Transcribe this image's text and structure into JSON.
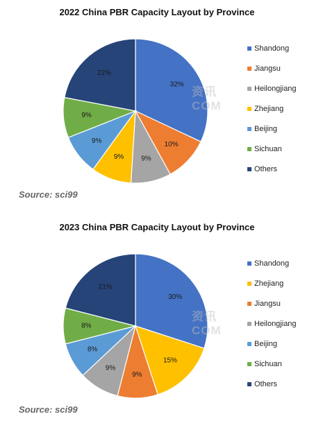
{
  "colors": {
    "Shandong": "#4472c4",
    "Jiangsu": "#ed7d31",
    "Heilongjiang": "#a5a5a5",
    "Zhejiang": "#ffc000",
    "Beijing": "#5b9bd5",
    "Sichuan": "#70ad47",
    "Others": "#264478"
  },
  "watermark": "资讯\nCOM",
  "chart_data": [
    {
      "type": "pie",
      "title": "2022 China PBR Capacity Layout by Province",
      "source": "Source: sci99",
      "legend_position": "right",
      "labels": [
        "Shandong",
        "Jiangsu",
        "Heilongjiang",
        "Zhejiang",
        "Beijing",
        "Sichuan",
        "Others"
      ],
      "values": [
        32,
        10,
        9,
        9,
        9,
        9,
        22
      ],
      "value_labels": [
        "32%",
        "10%",
        "9%",
        "9%",
        "9%",
        "9%",
        "22%"
      ]
    },
    {
      "type": "pie",
      "title": "2023 China PBR Capacity Layout by Province",
      "source": "Source: sci99",
      "legend_position": "right",
      "labels": [
        "Shandong",
        "Zhejiang",
        "Jiangsu",
        "Heilongjiang",
        "Beijing",
        "Sichuan",
        "Others"
      ],
      "values": [
        30,
        15,
        9,
        9,
        8,
        8,
        21
      ],
      "value_labels": [
        "30%",
        "15%",
        "9%",
        "9%",
        "8%",
        "8%",
        "21%"
      ]
    }
  ]
}
